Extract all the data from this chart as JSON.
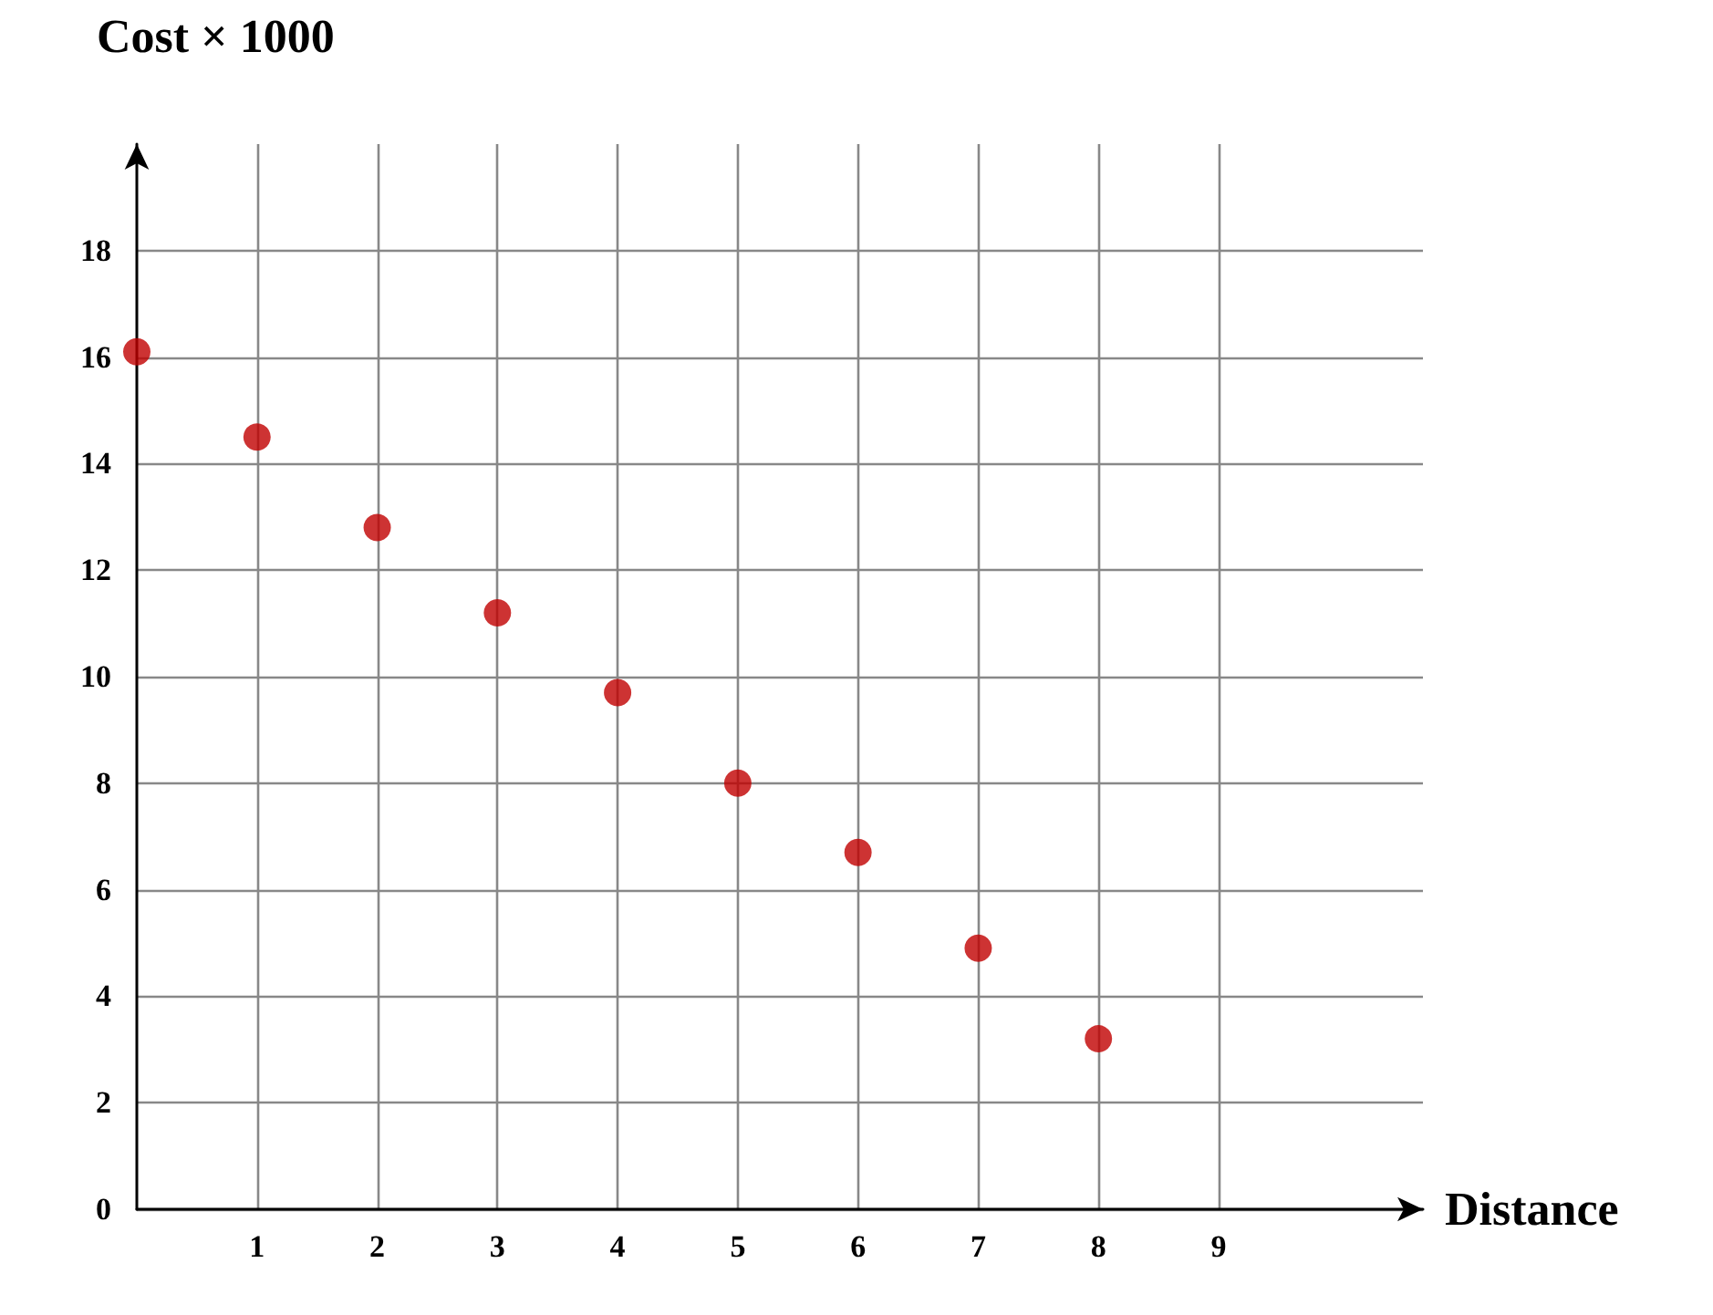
{
  "chart_data": {
    "type": "scatter",
    "xlabel": "Distance",
    "ylabel": "Cost × 1000",
    "x": [
      0,
      1,
      2,
      3,
      4,
      5,
      6,
      7,
      8
    ],
    "series": [
      {
        "color": "#c00000",
        "values": [
          16.1,
          14.5,
          12.8,
          11.2,
          9.7,
          8,
          6.7,
          4.9,
          3.2
        ]
      }
    ],
    "xlim": [
      0,
      10.7
    ],
    "xticks": [
      1,
      2,
      3,
      4,
      5,
      6,
      7,
      8,
      9
    ],
    "ylim": [
      0,
      20
    ],
    "yticks": [
      0,
      2,
      4,
      6,
      8,
      10,
      12,
      14,
      16,
      18
    ],
    "grid": true,
    "marker": "circle"
  }
}
